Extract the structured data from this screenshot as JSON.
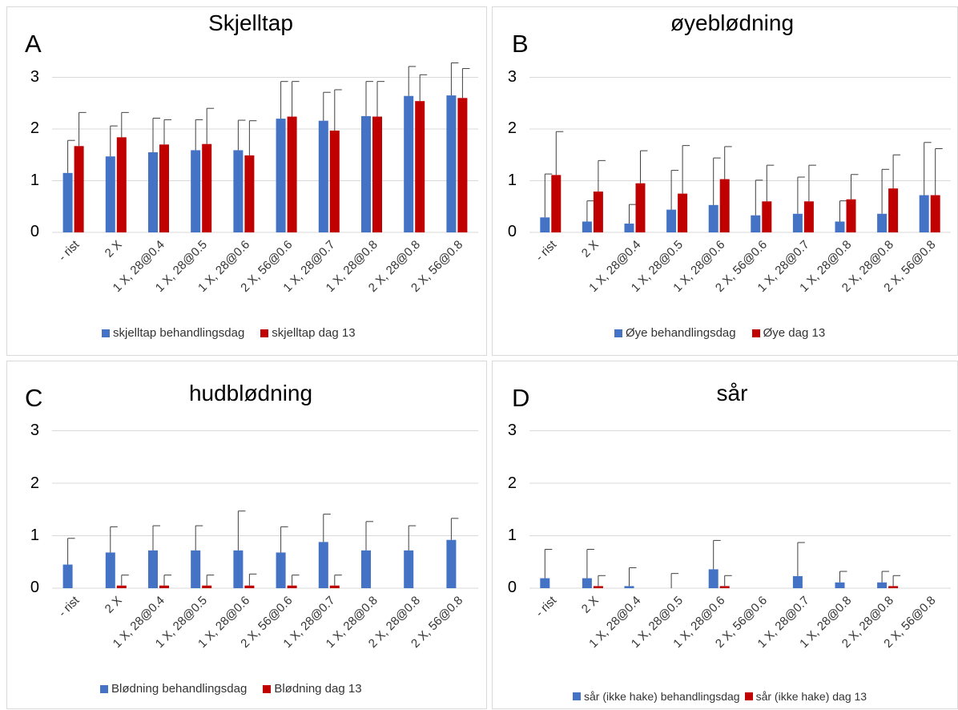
{
  "colors": {
    "series1": "#4472c4",
    "series2": "#c00000",
    "error": "#404040",
    "grid": "#d9d9d9"
  },
  "chart_data": [
    {
      "type": "bar",
      "letter": "A",
      "title": "Skjelltap",
      "categories": [
        "- rist",
        "2 X",
        "1 X, 28@0.4",
        "1 X, 28@0.5",
        "1 X, 28@0.6",
        "2 X, 56@0.6",
        "1 X, 28@0.7",
        "1 X, 28@0.8",
        "2 X, 28@0.8",
        "2 X, 56@0.8"
      ],
      "yticks": [
        "0",
        "1",
        "2",
        "3"
      ],
      "ylim": [
        0,
        3
      ],
      "grid": true,
      "legend_position": "bottom",
      "series": [
        {
          "name": "skjelltap behandlingsdag",
          "values": [
            1.15,
            1.47,
            1.55,
            1.59,
            1.59,
            2.2,
            2.16,
            2.25,
            2.64,
            2.65
          ],
          "errors": [
            0.63,
            0.59,
            0.66,
            0.59,
            0.58,
            0.72,
            0.55,
            0.67,
            0.57,
            0.63
          ]
        },
        {
          "name": "skjelltap dag 13",
          "values": [
            1.67,
            1.84,
            1.7,
            1.71,
            1.49,
            2.24,
            1.97,
            2.24,
            2.54,
            2.6
          ],
          "errors": [
            0.65,
            0.48,
            0.48,
            0.69,
            0.67,
            0.68,
            0.79,
            0.68,
            0.51,
            0.57
          ]
        }
      ]
    },
    {
      "type": "bar",
      "letter": "B",
      "title": "øyeblødning",
      "categories": [
        "- rist",
        "2 X",
        "1 X, 28@0.4",
        "1 X, 28@0.5",
        "1 X, 28@0.6",
        "2 X, 56@0.6",
        "1 X, 28@0.7",
        "1 X, 28@0.8",
        "2 X, 28@0.8",
        "2 X, 56@0.8"
      ],
      "yticks": [
        "0",
        "1",
        "2",
        "3"
      ],
      "ylim": [
        0,
        3
      ],
      "grid": true,
      "legend_position": "bottom",
      "series": [
        {
          "name": "Øye behandlingsdag",
          "values": [
            0.29,
            0.21,
            0.17,
            0.44,
            0.53,
            0.33,
            0.36,
            0.21,
            0.36,
            0.72
          ],
          "errors": [
            0.84,
            0.4,
            0.37,
            0.76,
            0.91,
            0.68,
            0.71,
            0.4,
            0.86,
            1.02
          ]
        },
        {
          "name": "Øye dag 13",
          "values": [
            1.11,
            0.79,
            0.95,
            0.75,
            1.03,
            0.6,
            0.6,
            0.64,
            0.85,
            0.72
          ],
          "errors": [
            0.84,
            0.6,
            0.63,
            0.93,
            0.63,
            0.7,
            0.7,
            0.48,
            0.65,
            0.9
          ]
        }
      ]
    },
    {
      "type": "bar",
      "letter": "C",
      "title": "hudblødning",
      "categories": [
        "- rist",
        "2 X",
        "1 X, 28@0.4",
        "1 X, 28@0.5",
        "1 X, 28@0.6",
        "2 X, 56@0.6",
        "1 X, 28@0.7",
        "1 X, 28@0.8",
        "2 X, 28@0.8",
        "2 X, 56@0.8"
      ],
      "yticks": [
        "0",
        "1",
        "2",
        "3"
      ],
      "ylim": [
        0,
        3
      ],
      "grid": true,
      "legend_position": "bottom",
      "series": [
        {
          "name": "Blødning behandlingsdag",
          "values": [
            0.45,
            0.68,
            0.72,
            0.72,
            0.72,
            0.68,
            0.88,
            0.72,
            0.72,
            0.92
          ],
          "errors": [
            0.5,
            0.49,
            0.47,
            0.47,
            0.75,
            0.49,
            0.53,
            0.55,
            0.47,
            0.41
          ]
        },
        {
          "name": "Blødning dag 13",
          "values": [
            0,
            0.05,
            0.05,
            0.05,
            0.05,
            0.05,
            0.05,
            0,
            0,
            0
          ],
          "errors": [
            0,
            0.2,
            0.2,
            0.2,
            0.22,
            0.2,
            0.2,
            0,
            0,
            0
          ]
        }
      ]
    },
    {
      "type": "bar",
      "letter": "D",
      "title": "sår",
      "categories": [
        "- rist",
        "2 X",
        "1 X, 28@0.4",
        "1 X, 28@0.5",
        "1 X, 28@0.6",
        "2 X, 56@0.6",
        "1 X, 28@0.7",
        "1 X, 28@0.8",
        "2 X, 28@0.8",
        "2 X, 56@0.8"
      ],
      "yticks": [
        "0",
        "1",
        "2",
        "3"
      ],
      "ylim": [
        0,
        3
      ],
      "grid": true,
      "legend_position": "bottom",
      "series": [
        {
          "name": "sår (ikke hake) behandlingsdag",
          "values": [
            0.19,
            0.19,
            0.04,
            0,
            0.36,
            0,
            0.23,
            0.11,
            0.11,
            0
          ],
          "errors": [
            0.55,
            0.55,
            0.35,
            0.28,
            0.55,
            0,
            0.64,
            0.21,
            0.21,
            0
          ]
        },
        {
          "name": "sår (ikke hake) dag 13",
          "values": [
            0,
            0.04,
            0,
            0,
            0.04,
            0,
            0,
            0,
            0.04,
            0
          ],
          "errors": [
            0,
            0.2,
            0,
            0,
            0.2,
            0,
            0,
            0,
            0.2,
            0
          ]
        }
      ]
    }
  ]
}
